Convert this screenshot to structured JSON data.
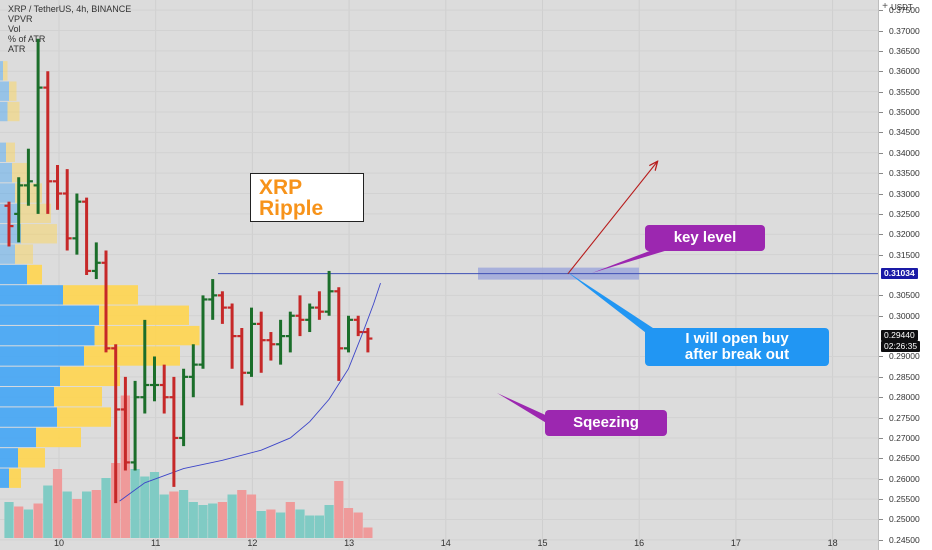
{
  "legend": {
    "symbol": "XRP / TetherUS, 4h, BINANCE",
    "indicators": [
      "VPVR",
      "Vol",
      "% of ATR",
      "ATR"
    ]
  },
  "price_axis": {
    "unit": "USDT",
    "ticks": [
      "0.37500",
      "0.37000",
      "0.36500",
      "0.36000",
      "0.35500",
      "0.35000",
      "0.34500",
      "0.34000",
      "0.33500",
      "0.33000",
      "0.32500",
      "0.32000",
      "0.31500",
      "0.30500",
      "0.30000",
      "0.29000",
      "0.28500",
      "0.28000",
      "0.27500",
      "0.27000",
      "0.26500",
      "0.26000",
      "0.25500",
      "0.25000",
      "0.24500"
    ],
    "level_tag": "0.31034",
    "last_price_tag": "0.29440",
    "countdown_tag": "02:26:35"
  },
  "time_axis": {
    "labels": [
      "10",
      "11",
      "12",
      "13",
      "14",
      "15",
      "16",
      "17",
      "18"
    ]
  },
  "annotations": {
    "xrp_line1": "XRP",
    "xrp_line2": "Ripple",
    "key_level": "key level",
    "open_buy_line1": "I will open buy",
    "open_buy_line2": "after break out",
    "sqeezing": "Sqeezing"
  },
  "colors": {
    "up": "#1b6e2a",
    "down": "#c62828",
    "level_line": "#3f51b5",
    "ma_line": "#3d46c8",
    "vol_up": "#80cbc4",
    "vol_down": "#ef9a9a",
    "vpvr_up": "#42a5f5",
    "vpvr_down": "#ffd54f",
    "arrow": "#b71c1c",
    "key_box": "#9c27b0",
    "buy_box": "#2196f3"
  },
  "chart_data": {
    "type": "ohlc",
    "symbol": "XRP / TetherUS",
    "interval": "4h",
    "exchange": "BINANCE",
    "ylim": [
      0.2425,
      0.3775
    ],
    "key_level": 0.31034,
    "last_price": 0.2944,
    "time_labels": [
      "10",
      "11",
      "12",
      "13",
      "14",
      "15",
      "16",
      "17",
      "18"
    ],
    "bars": [
      {
        "o": 0.327,
        "h": 0.328,
        "l": 0.317,
        "c": 0.322
      },
      {
        "o": 0.325,
        "h": 0.334,
        "l": 0.318,
        "c": 0.332
      },
      {
        "o": 0.332,
        "h": 0.341,
        "l": 0.327,
        "c": 0.333
      },
      {
        "o": 0.332,
        "h": 0.368,
        "l": 0.325,
        "c": 0.356
      },
      {
        "o": 0.356,
        "h": 0.36,
        "l": 0.325,
        "c": 0.333
      },
      {
        "o": 0.333,
        "h": 0.337,
        "l": 0.326,
        "c": 0.33
      },
      {
        "o": 0.33,
        "h": 0.336,
        "l": 0.316,
        "c": 0.319
      },
      {
        "o": 0.319,
        "h": 0.33,
        "l": 0.315,
        "c": 0.328
      },
      {
        "o": 0.328,
        "h": 0.329,
        "l": 0.31,
        "c": 0.311
      },
      {
        "o": 0.311,
        "h": 0.318,
        "l": 0.309,
        "c": 0.313
      },
      {
        "o": 0.313,
        "h": 0.316,
        "l": 0.291,
        "c": 0.292
      },
      {
        "o": 0.292,
        "h": 0.293,
        "l": 0.254,
        "c": 0.277
      },
      {
        "o": 0.277,
        "h": 0.285,
        "l": 0.262,
        "c": 0.264
      },
      {
        "o": 0.264,
        "h": 0.284,
        "l": 0.262,
        "c": 0.28
      },
      {
        "o": 0.28,
        "h": 0.299,
        "l": 0.276,
        "c": 0.283
      },
      {
        "o": 0.283,
        "h": 0.29,
        "l": 0.279,
        "c": 0.283
      },
      {
        "o": 0.283,
        "h": 0.288,
        "l": 0.276,
        "c": 0.28
      },
      {
        "o": 0.28,
        "h": 0.285,
        "l": 0.258,
        "c": 0.27
      },
      {
        "o": 0.27,
        "h": 0.287,
        "l": 0.268,
        "c": 0.285
      },
      {
        "o": 0.285,
        "h": 0.293,
        "l": 0.28,
        "c": 0.288
      },
      {
        "o": 0.288,
        "h": 0.305,
        "l": 0.287,
        "c": 0.304
      },
      {
        "o": 0.304,
        "h": 0.309,
        "l": 0.299,
        "c": 0.305
      },
      {
        "o": 0.305,
        "h": 0.306,
        "l": 0.298,
        "c": 0.302
      },
      {
        "o": 0.302,
        "h": 0.303,
        "l": 0.287,
        "c": 0.295
      },
      {
        "o": 0.295,
        "h": 0.297,
        "l": 0.278,
        "c": 0.286
      },
      {
        "o": 0.286,
        "h": 0.302,
        "l": 0.285,
        "c": 0.298
      },
      {
        "o": 0.298,
        "h": 0.301,
        "l": 0.286,
        "c": 0.294
      },
      {
        "o": 0.294,
        "h": 0.296,
        "l": 0.289,
        "c": 0.293
      },
      {
        "o": 0.293,
        "h": 0.299,
        "l": 0.288,
        "c": 0.295
      },
      {
        "o": 0.295,
        "h": 0.301,
        "l": 0.291,
        "c": 0.3
      },
      {
        "o": 0.3,
        "h": 0.305,
        "l": 0.295,
        "c": 0.299
      },
      {
        "o": 0.299,
        "h": 0.303,
        "l": 0.296,
        "c": 0.302
      },
      {
        "o": 0.302,
        "h": 0.306,
        "l": 0.299,
        "c": 0.301
      },
      {
        "o": 0.301,
        "h": 0.311,
        "l": 0.3,
        "c": 0.306
      },
      {
        "o": 0.306,
        "h": 0.307,
        "l": 0.284,
        "c": 0.292
      },
      {
        "o": 0.292,
        "h": 0.3,
        "l": 0.291,
        "c": 0.299
      },
      {
        "o": 0.299,
        "h": 0.3,
        "l": 0.295,
        "c": 0.296
      },
      {
        "o": 0.296,
        "h": 0.297,
        "l": 0.291,
        "c": 0.2944
      }
    ],
    "volume": [
      {
        "v": 0.24,
        "up": true
      },
      {
        "v": 0.21,
        "up": false
      },
      {
        "v": 0.19,
        "up": true
      },
      {
        "v": 0.23,
        "up": false
      },
      {
        "v": 0.35,
        "up": true
      },
      {
        "v": 0.46,
        "up": false
      },
      {
        "v": 0.31,
        "up": true
      },
      {
        "v": 0.26,
        "up": false
      },
      {
        "v": 0.31,
        "up": true
      },
      {
        "v": 0.32,
        "up": false
      },
      {
        "v": 0.4,
        "up": true
      },
      {
        "v": 0.5,
        "up": false
      },
      {
        "v": 0.95,
        "up": false
      },
      {
        "v": 0.46,
        "up": true
      },
      {
        "v": 0.41,
        "up": true
      },
      {
        "v": 0.44,
        "up": true
      },
      {
        "v": 0.29,
        "up": true
      },
      {
        "v": 0.31,
        "up": false
      },
      {
        "v": 0.32,
        "up": true
      },
      {
        "v": 0.24,
        "up": true
      },
      {
        "v": 0.22,
        "up": true
      },
      {
        "v": 0.23,
        "up": true
      },
      {
        "v": 0.24,
        "up": false
      },
      {
        "v": 0.29,
        "up": true
      },
      {
        "v": 0.32,
        "up": false
      },
      {
        "v": 0.29,
        "up": false
      },
      {
        "v": 0.18,
        "up": true
      },
      {
        "v": 0.19,
        "up": false
      },
      {
        "v": 0.17,
        "up": true
      },
      {
        "v": 0.24,
        "up": false
      },
      {
        "v": 0.19,
        "up": true
      },
      {
        "v": 0.15,
        "up": true
      },
      {
        "v": 0.15,
        "up": true
      },
      {
        "v": 0.22,
        "up": true
      },
      {
        "v": 0.38,
        "up": false
      },
      {
        "v": 0.2,
        "up": false
      },
      {
        "v": 0.17,
        "up": false
      },
      {
        "v": 0.07,
        "up": false
      }
    ],
    "volume_profile": [
      {
        "price": 0.36,
        "up": 0.02,
        "down": 0.03
      },
      {
        "price": 0.355,
        "up": 0.06,
        "down": 0.05
      },
      {
        "price": 0.35,
        "up": 0.05,
        "down": 0.08
      },
      {
        "price": 0.34,
        "up": 0.04,
        "down": 0.06
      },
      {
        "price": 0.335,
        "up": 0.08,
        "down": 0.1
      },
      {
        "price": 0.33,
        "up": 0.1,
        "down": 0.18
      },
      {
        "price": 0.325,
        "up": 0.12,
        "down": 0.22
      },
      {
        "price": 0.32,
        "up": 0.14,
        "down": 0.24
      },
      {
        "price": 0.315,
        "up": 0.1,
        "down": 0.12
      },
      {
        "price": 0.31,
        "up": 0.18,
        "down": 0.1
      },
      {
        "price": 0.305,
        "up": 0.42,
        "down": 0.5
      },
      {
        "price": 0.3,
        "up": 0.66,
        "down": 0.6
      },
      {
        "price": 0.295,
        "up": 0.63,
        "down": 0.7
      },
      {
        "price": 0.29,
        "up": 0.56,
        "down": 0.64
      },
      {
        "price": 0.285,
        "up": 0.4,
        "down": 0.4
      },
      {
        "price": 0.28,
        "up": 0.36,
        "down": 0.32
      },
      {
        "price": 0.275,
        "up": 0.38,
        "down": 0.36
      },
      {
        "price": 0.27,
        "up": 0.24,
        "down": 0.3
      },
      {
        "price": 0.265,
        "up": 0.12,
        "down": 0.18
      },
      {
        "price": 0.26,
        "up": 0.06,
        "down": 0.08
      }
    ],
    "ma_points": [
      {
        "i": 11.4,
        "p": 0.2545
      },
      {
        "i": 14,
        "p": 0.259
      },
      {
        "i": 18,
        "p": 0.2625
      },
      {
        "i": 22,
        "p": 0.2645
      },
      {
        "i": 26,
        "p": 0.267
      },
      {
        "i": 29,
        "p": 0.27
      },
      {
        "i": 31,
        "p": 0.274
      },
      {
        "i": 33,
        "p": 0.2795
      },
      {
        "i": 35,
        "p": 0.287
      },
      {
        "i": 36.5,
        "p": 0.296
      },
      {
        "i": 37.6,
        "p": 0.303
      },
      {
        "i": 38.3,
        "p": 0.308
      }
    ],
    "forecast_arrow": {
      "from_i": 37.0,
      "from_p": 0.3103,
      "to_i": 43.0,
      "to_p": 0.34
    }
  }
}
